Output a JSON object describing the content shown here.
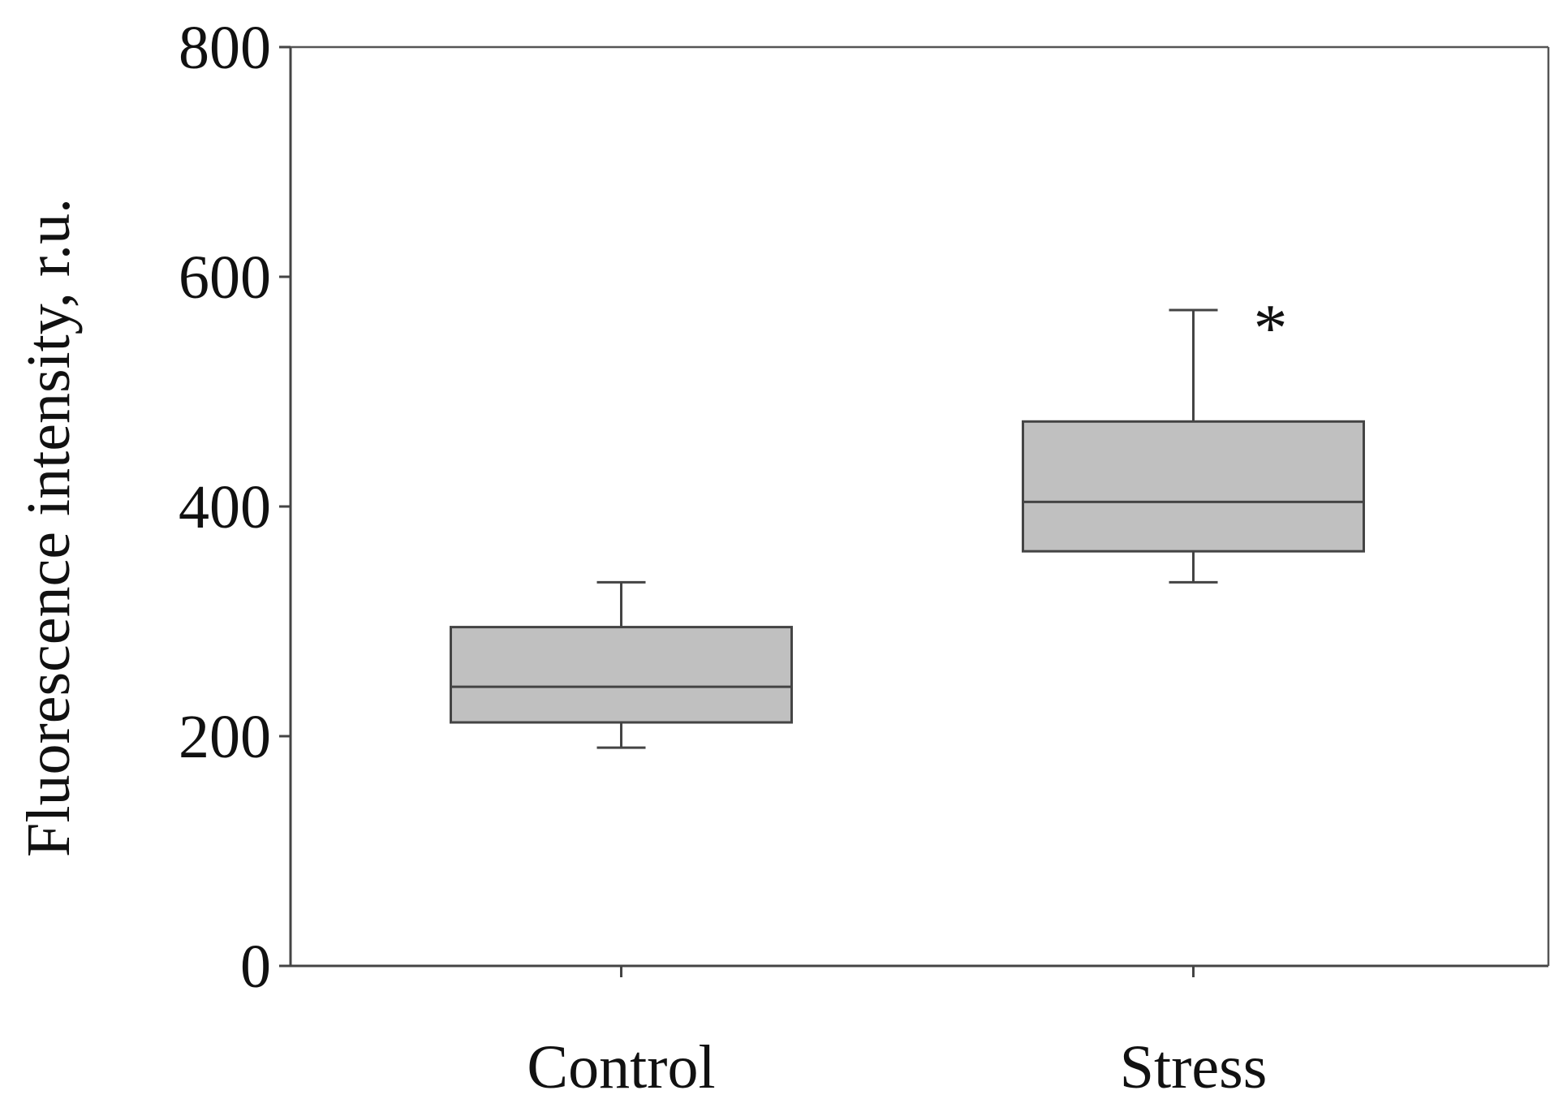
{
  "chart_data": {
    "type": "box",
    "ylabel": "Fluorescence intensity, r.u.",
    "xlabel": "",
    "ylim": [
      0,
      800
    ],
    "yticks": [
      0,
      200,
      400,
      600,
      800
    ],
    "categories": [
      "Control",
      "Stress"
    ],
    "boxes": [
      {
        "category": "Control",
        "whisker_low": 190,
        "q1": 212,
        "median": 243,
        "q3": 295,
        "whisker_high": 334
      },
      {
        "category": "Stress",
        "whisker_low": 334,
        "q1": 361,
        "median": 404,
        "q3": 474,
        "whisker_high": 571
      }
    ],
    "annotations": [
      {
        "text": "*",
        "category": "Stress"
      }
    ],
    "box_fill_color": "#c0c0c0",
    "grid": false
  }
}
